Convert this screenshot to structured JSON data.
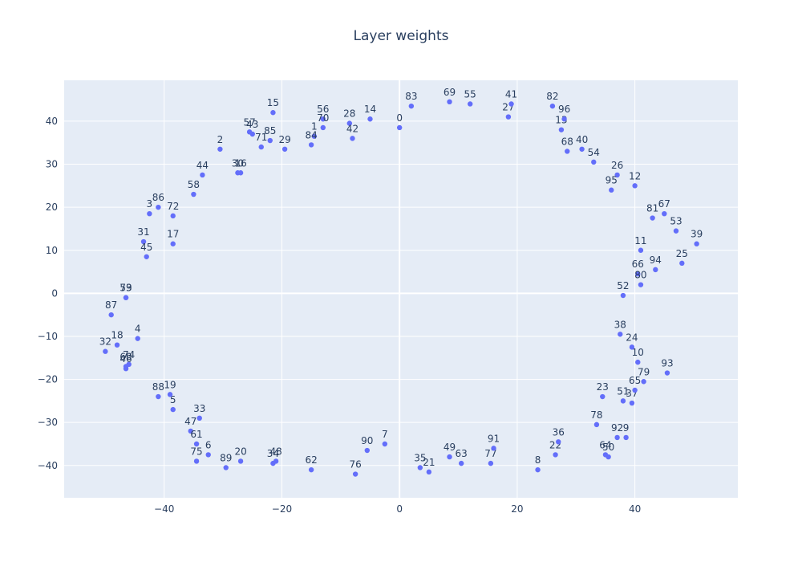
{
  "chart_data": {
    "type": "scatter",
    "title": "Layer weights",
    "xlabel": "",
    "ylabel": "",
    "xlim": [
      -57,
      57.5
    ],
    "ylim": [
      -47.5,
      49.5
    ],
    "x_ticks": [
      -40,
      -20,
      0,
      20,
      40
    ],
    "y_ticks": [
      -40,
      -30,
      -20,
      -10,
      0,
      10,
      20,
      30,
      40
    ],
    "grid": true,
    "marker_color": "#636efa",
    "plot_bg": "#e5ecf6",
    "grid_color": "#ffffff",
    "text_color": "#2a3f5f",
    "points": [
      {
        "label": "0",
        "x": 0.0,
        "y": 38.5
      },
      {
        "label": "1",
        "x": -14.5,
        "y": 36.5
      },
      {
        "label": "2",
        "x": -30.5,
        "y": 33.5
      },
      {
        "label": "3",
        "x": -42.5,
        "y": 18.5
      },
      {
        "label": "4",
        "x": -44.5,
        "y": -10.5
      },
      {
        "label": "5",
        "x": -38.5,
        "y": -27.0
      },
      {
        "label": "6",
        "x": -32.5,
        "y": -37.5
      },
      {
        "label": "7",
        "x": -2.5,
        "y": -35.0
      },
      {
        "label": "8",
        "x": 23.5,
        "y": -41.0
      },
      {
        "label": "9",
        "x": 38.5,
        "y": -33.5
      },
      {
        "label": "10",
        "x": 40.5,
        "y": -16.0
      },
      {
        "label": "11",
        "x": 41.0,
        "y": 10.0
      },
      {
        "label": "12",
        "x": 40.0,
        "y": 25.0
      },
      {
        "label": "13",
        "x": 27.5,
        "y": 38.0
      },
      {
        "label": "14",
        "x": -5.0,
        "y": 40.5
      },
      {
        "label": "15",
        "x": -21.5,
        "y": 42.0
      },
      {
        "label": "16",
        "x": -27.0,
        "y": 28.0
      },
      {
        "label": "17",
        "x": -38.5,
        "y": 11.5
      },
      {
        "label": "18",
        "x": -48.0,
        "y": -12.0
      },
      {
        "label": "19",
        "x": -39.0,
        "y": -23.5
      },
      {
        "label": "20",
        "x": -27.0,
        "y": -39.0
      },
      {
        "label": "21",
        "x": 5.0,
        "y": -41.5
      },
      {
        "label": "22",
        "x": 26.5,
        "y": -37.5
      },
      {
        "label": "23",
        "x": 34.5,
        "y": -24.0
      },
      {
        "label": "24",
        "x": 39.5,
        "y": -12.5
      },
      {
        "label": "25",
        "x": 48.0,
        "y": 7.0
      },
      {
        "label": "26",
        "x": 37.0,
        "y": 27.5
      },
      {
        "label": "27",
        "x": 18.5,
        "y": 41.0
      },
      {
        "label": "28",
        "x": -8.5,
        "y": 39.5
      },
      {
        "label": "29",
        "x": -19.5,
        "y": 33.5
      },
      {
        "label": "30",
        "x": -27.5,
        "y": 28.0
      },
      {
        "label": "31",
        "x": -43.5,
        "y": 12.0
      },
      {
        "label": "32",
        "x": -50.0,
        "y": -13.5
      },
      {
        "label": "33",
        "x": -34.0,
        "y": -29.0
      },
      {
        "label": "34",
        "x": -21.5,
        "y": -39.5
      },
      {
        "label": "35",
        "x": 3.5,
        "y": -40.5
      },
      {
        "label": "36",
        "x": 27.0,
        "y": -34.5
      },
      {
        "label": "37",
        "x": 39.5,
        "y": -25.5
      },
      {
        "label": "38",
        "x": 37.5,
        "y": -9.5
      },
      {
        "label": "39",
        "x": 50.5,
        "y": 11.5
      },
      {
        "label": "40",
        "x": 31.0,
        "y": 33.5
      },
      {
        "label": "41",
        "x": 19.0,
        "y": 44.0
      },
      {
        "label": "42",
        "x": -8.0,
        "y": 36.0
      },
      {
        "label": "43",
        "x": -25.0,
        "y": 37.0
      },
      {
        "label": "44",
        "x": -33.5,
        "y": 27.5
      },
      {
        "label": "45",
        "x": -43.0,
        "y": 8.5
      },
      {
        "label": "46",
        "x": -46.5,
        "y": -17.5
      },
      {
        "label": "47",
        "x": -35.5,
        "y": -32.0
      },
      {
        "label": "48",
        "x": -21.0,
        "y": -39.0
      },
      {
        "label": "49",
        "x": 8.5,
        "y": -38.0
      },
      {
        "label": "50",
        "x": 35.5,
        "y": -38.0
      },
      {
        "label": "51",
        "x": 38.0,
        "y": -25.0
      },
      {
        "label": "52",
        "x": 38.0,
        "y": -0.5
      },
      {
        "label": "53",
        "x": 47.0,
        "y": 14.5
      },
      {
        "label": "54",
        "x": 33.0,
        "y": 30.5
      },
      {
        "label": "55",
        "x": 12.0,
        "y": 44.0
      },
      {
        "label": "56",
        "x": -13.0,
        "y": 40.5
      },
      {
        "label": "57",
        "x": -25.5,
        "y": 37.5
      },
      {
        "label": "58",
        "x": -35.0,
        "y": 23.0
      },
      {
        "label": "59",
        "x": -46.5,
        "y": -1.0
      },
      {
        "label": "60",
        "x": -46.5,
        "y": -17.0
      },
      {
        "label": "61",
        "x": -34.5,
        "y": -35.0
      },
      {
        "label": "62",
        "x": -15.0,
        "y": -41.0
      },
      {
        "label": "63",
        "x": 10.5,
        "y": -39.5
      },
      {
        "label": "64",
        "x": 35.0,
        "y": -37.5
      },
      {
        "label": "65",
        "x": 40.0,
        "y": -22.5
      },
      {
        "label": "66",
        "x": 40.5,
        "y": 4.5
      },
      {
        "label": "67",
        "x": 45.0,
        "y": 18.5
      },
      {
        "label": "68",
        "x": 28.5,
        "y": 33.0
      },
      {
        "label": "69",
        "x": 8.5,
        "y": 44.5
      },
      {
        "label": "70",
        "x": -13.0,
        "y": 38.5
      },
      {
        "label": "71",
        "x": -23.5,
        "y": 34.0
      },
      {
        "label": "72",
        "x": -38.5,
        "y": 18.0
      },
      {
        "label": "73",
        "x": -46.5,
        "y": -1.0
      },
      {
        "label": "74",
        "x": -46.0,
        "y": -16.5
      },
      {
        "label": "75",
        "x": -34.5,
        "y": -39.0
      },
      {
        "label": "76",
        "x": -7.5,
        "y": -42.0
      },
      {
        "label": "77",
        "x": 15.5,
        "y": -39.5
      },
      {
        "label": "78",
        "x": 33.5,
        "y": -30.5
      },
      {
        "label": "79",
        "x": 41.5,
        "y": -20.5
      },
      {
        "label": "80",
        "x": 41.0,
        "y": 2.0
      },
      {
        "label": "81",
        "x": 43.0,
        "y": 17.5
      },
      {
        "label": "82",
        "x": 26.0,
        "y": 43.5
      },
      {
        "label": "83",
        "x": 2.0,
        "y": 43.5
      },
      {
        "label": "84",
        "x": -15.0,
        "y": 34.5
      },
      {
        "label": "85",
        "x": -22.0,
        "y": 35.5
      },
      {
        "label": "86",
        "x": -41.0,
        "y": 20.0
      },
      {
        "label": "87",
        "x": -49.0,
        "y": -5.0
      },
      {
        "label": "88",
        "x": -41.0,
        "y": -24.0
      },
      {
        "label": "89",
        "x": -29.5,
        "y": -40.5
      },
      {
        "label": "90",
        "x": -5.5,
        "y": -36.5
      },
      {
        "label": "91",
        "x": 16.0,
        "y": -36.0
      },
      {
        "label": "92",
        "x": 37.0,
        "y": -33.5
      },
      {
        "label": "93",
        "x": 45.5,
        "y": -18.5
      },
      {
        "label": "94",
        "x": 43.5,
        "y": 5.5
      },
      {
        "label": "95",
        "x": 36.0,
        "y": 24.0
      },
      {
        "label": "96",
        "x": 28.0,
        "y": 40.5
      }
    ]
  }
}
